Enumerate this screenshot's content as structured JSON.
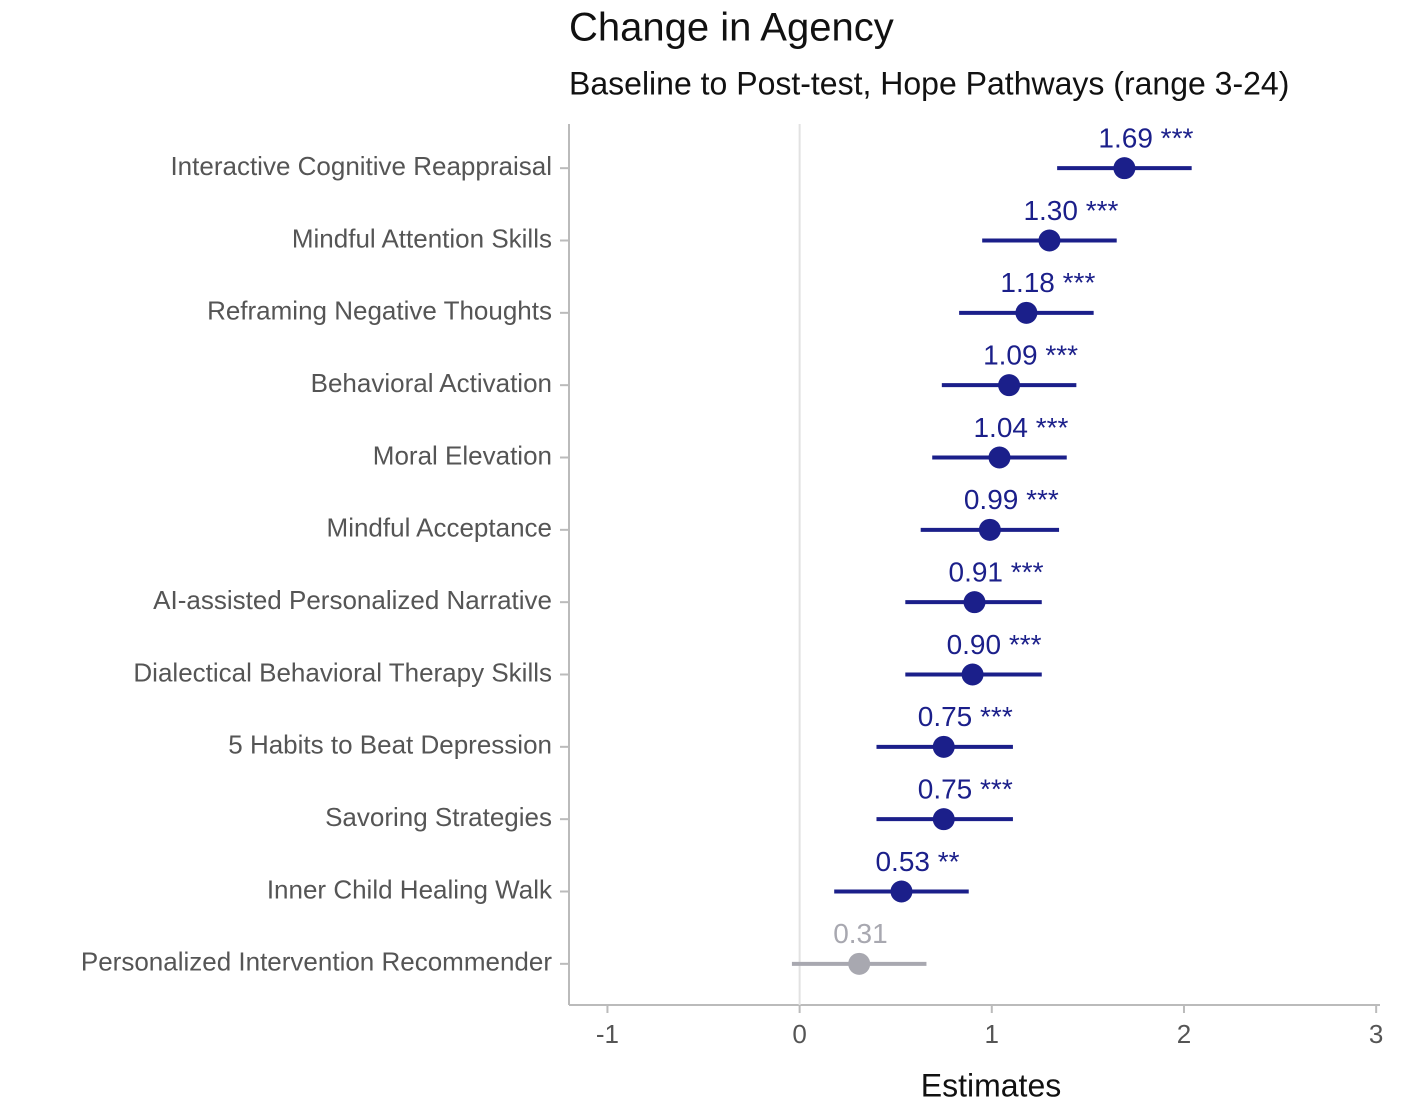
{
  "chart_data": {
    "type": "forest",
    "title": "Change in Agency",
    "subtitle": "Baseline to Post-test, Hope Pathways (range 3-24)",
    "x_label": "Estimates",
    "categories": [
      "Interactive Cognitive Reappraisal",
      "Mindful Attention Skills",
      "Reframing Negative Thoughts",
      "Behavioral Activation",
      "Moral Elevation",
      "Mindful Acceptance",
      "AI-assisted Personalized Narrative",
      "Dialectical Behavioral Therapy Skills",
      "5 Habits to Beat Depression",
      "Savoring Strategies",
      "Inner Child Healing Walk",
      "Personalized Intervention Recommender"
    ],
    "values": [
      1.69,
      1.3,
      1.18,
      1.09,
      1.04,
      0.99,
      0.91,
      0.9,
      0.75,
      0.75,
      0.53,
      0.31
    ],
    "value_labels": [
      "1.69 ***",
      "1.30 ***",
      "1.18 ***",
      "1.09 ***",
      "1.04 ***",
      "0.99 ***",
      "0.91 ***",
      "0.90 ***",
      "0.75 ***",
      "0.75 ***",
      "0.53 **",
      "0.31"
    ],
    "ci_low": [
      1.34,
      0.95,
      0.83,
      0.74,
      0.69,
      0.63,
      0.55,
      0.55,
      0.4,
      0.4,
      0.18,
      -0.04
    ],
    "ci_high": [
      2.04,
      1.65,
      1.53,
      1.44,
      1.39,
      1.35,
      1.26,
      1.26,
      1.11,
      1.11,
      0.88,
      0.66
    ],
    "colors": [
      "#1b1f8a",
      "#1b1f8a",
      "#1b1f8a",
      "#1b1f8a",
      "#1b1f8a",
      "#1b1f8a",
      "#1b1f8a",
      "#1b1f8a",
      "#1b1f8a",
      "#1b1f8a",
      "#1b1f8a",
      "#a8a8b0"
    ],
    "xlim": [
      -1.2,
      3.02
    ],
    "xticks": [
      -1,
      0,
      1,
      2,
      3
    ],
    "reference_line": 0
  }
}
